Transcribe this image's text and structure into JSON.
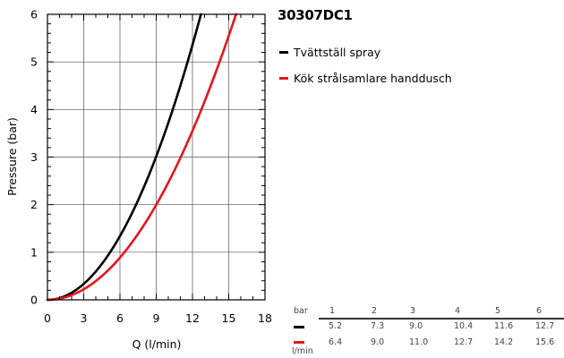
{
  "chart_data": {
    "type": "line",
    "title": "30307DC1",
    "xlabel": "Q (l/min)",
    "ylabel": "Pressure (bar)",
    "xlim": [
      0,
      18
    ],
    "ylim": [
      0,
      6
    ],
    "xticks": [
      0,
      3,
      6,
      9,
      12,
      15,
      18
    ],
    "yticks": [
      0,
      1,
      2,
      3,
      4,
      5,
      6
    ],
    "grid": true,
    "legend_position": "right",
    "series": [
      {
        "name": "Tvättställ spray",
        "color": "#000000",
        "pressure_bar": [
          0,
          1,
          2,
          3,
          4,
          5,
          6
        ],
        "flow_lpm": [
          0,
          5.2,
          7.3,
          9.0,
          10.4,
          11.6,
          12.7
        ]
      },
      {
        "name": "Kök strålsamlare handdusch",
        "color": "#e8141e",
        "pressure_bar": [
          0,
          1,
          2,
          3,
          4,
          5,
          6
        ],
        "flow_lpm": [
          0,
          6.4,
          9.0,
          11.0,
          12.7,
          14.2,
          15.6
        ]
      }
    ]
  },
  "table": {
    "unit_top": "bar",
    "unit_bottom": "l/min",
    "pressures": [
      "1",
      "2",
      "3",
      "4",
      "5",
      "6"
    ],
    "rows": [
      {
        "color": "#000000",
        "values": [
          "5.2",
          "7.3",
          "9.0",
          "10.4",
          "11.6",
          "12.7"
        ]
      },
      {
        "color": "#e8141e",
        "values": [
          "6.4",
          "9.0",
          "11.0",
          "12.7",
          "14.2",
          "15.6"
        ]
      }
    ]
  }
}
